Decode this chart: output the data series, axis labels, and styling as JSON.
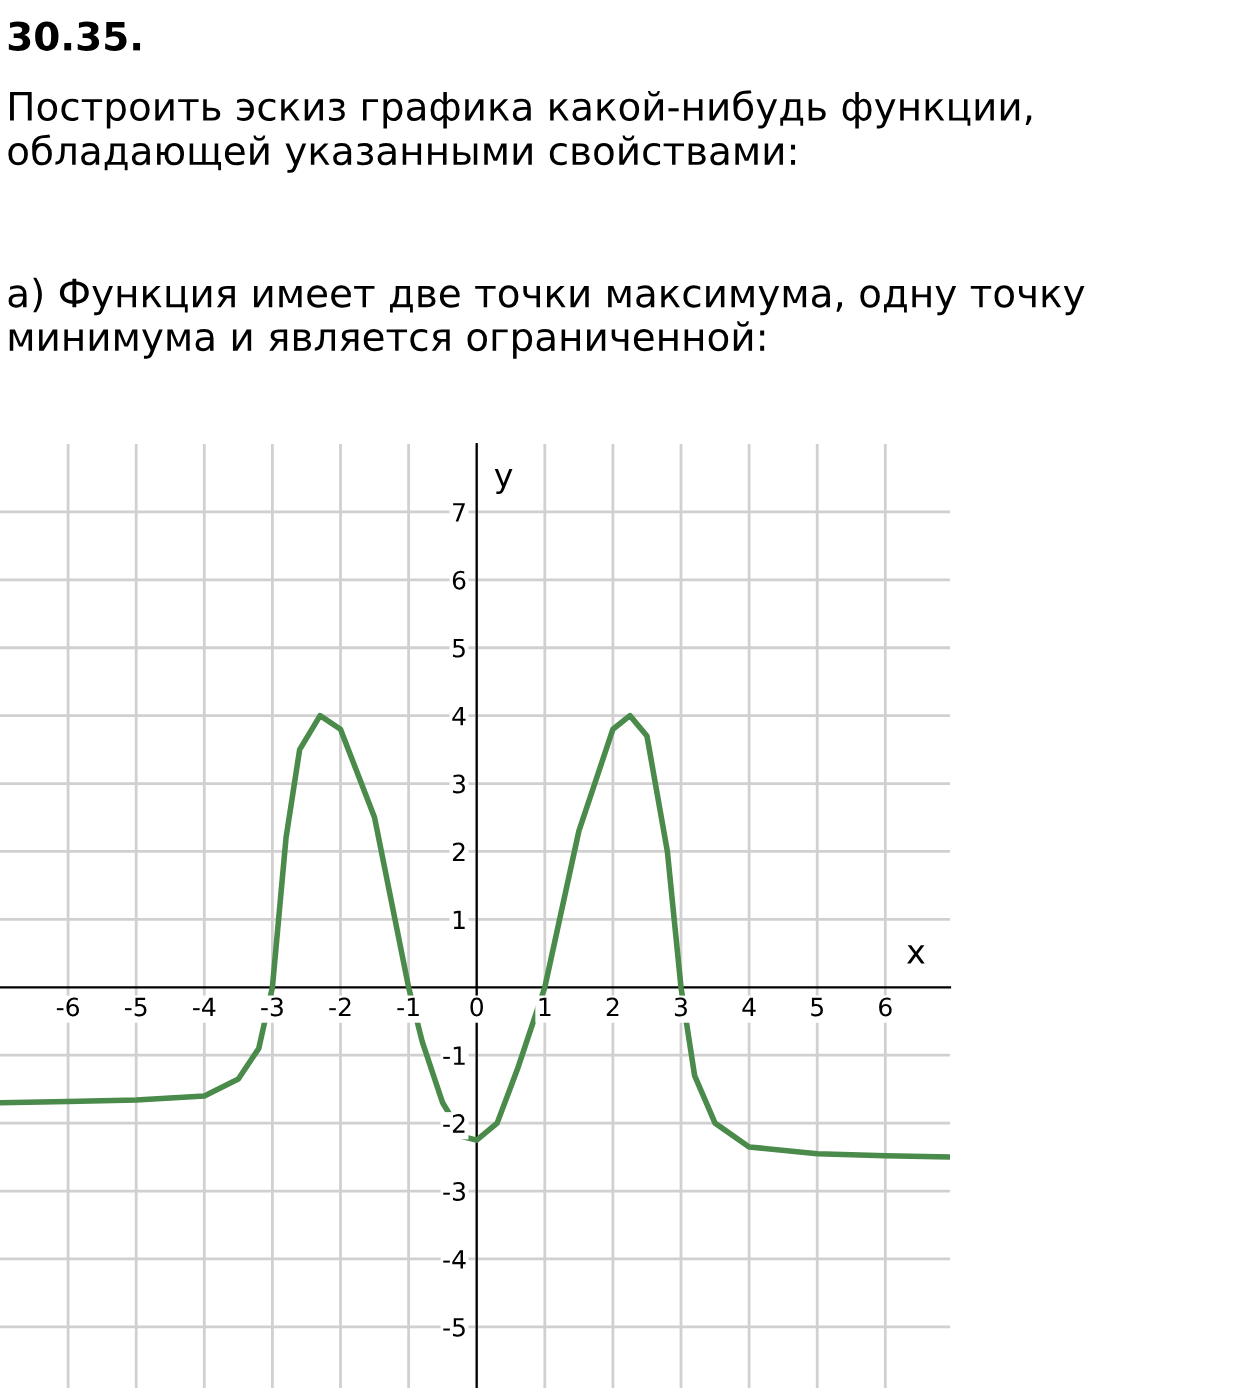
{
  "chart_data": {
    "type": "line",
    "title": "30.35.",
    "subtitle": "Построить эскиз графика какой-нибудь функции, обладающей указанными свойствами:",
    "annotations": [
      "а) Функция имеет две точки максимума, одну точку минимума и является ограниченной:"
    ],
    "xlabel": "x",
    "ylabel": "y",
    "series": [
      {
        "color": "#4a8a4a",
        "x": [
          -7,
          -6,
          -5,
          -4,
          -3.5,
          -3.2,
          -3,
          -2.8,
          -2.6,
          -2.3,
          -2,
          -1.5,
          -1,
          -0.8,
          -0.5,
          -0.2,
          0,
          0.3,
          0.6,
          1,
          1.5,
          2,
          2.25,
          2.5,
          2.8,
          3,
          3.2,
          3.5,
          4,
          5,
          6,
          6.95
        ],
        "values": [
          -1.7,
          -1.68,
          -1.66,
          -1.6,
          -1.35,
          -0.9,
          0,
          2.2,
          3.5,
          4,
          3.8,
          2.5,
          0,
          -0.8,
          -1.7,
          -2.2,
          -2.25,
          -2,
          -1.2,
          0,
          2.3,
          3.8,
          4,
          3.7,
          2,
          0,
          -1.3,
          -2,
          -2.35,
          -2.45,
          -2.48,
          -2.5
        ]
      }
    ],
    "xlim": [
      -7,
      6.95
    ],
    "ylim": [
      -5.9,
      8
    ],
    "xticks": [
      -6,
      -5,
      -4,
      -3,
      -2,
      -1,
      0,
      1,
      2,
      3,
      4,
      5,
      6
    ],
    "yticks": [
      -5,
      -4,
      -3,
      -2,
      -1,
      1,
      2,
      3,
      4,
      5,
      6,
      7
    ],
    "grid": true,
    "line_style": "solid"
  }
}
